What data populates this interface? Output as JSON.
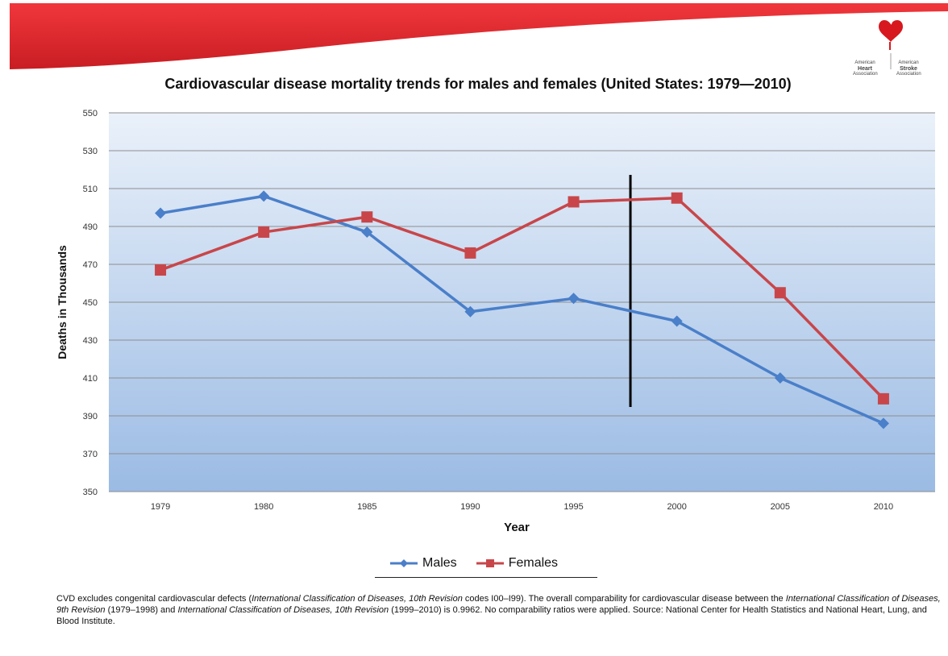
{
  "slide": {
    "logo": {
      "heart_line1": "American",
      "heart_line2": "Heart",
      "heart_line3": "Association",
      "stroke_line1": "American",
      "stroke_line2": "Stroke",
      "stroke_line3": "Association"
    },
    "colors": {
      "banner_red": "#e8252c",
      "plot_top": "#eaf1fa",
      "plot_bottom": "#9bbbe4",
      "males": "#4a7fc9",
      "females": "#c8464a"
    }
  },
  "chart_data": {
    "type": "line",
    "title": "Cardiovascular disease mortality trends for males and females (United States: 1979—2010)",
    "xlabel": "Year",
    "ylabel": "Deaths in Thousands",
    "categories": [
      "1979",
      "1980",
      "1985",
      "1990",
      "1995",
      "2000",
      "2005",
      "2010"
    ],
    "yticks": [
      350,
      370,
      390,
      410,
      430,
      450,
      470,
      490,
      510,
      530,
      550
    ],
    "ylim": [
      350,
      550
    ],
    "grid": true,
    "legend_position": "bottom",
    "series": [
      {
        "name": "Males",
        "marker": "diamond",
        "values": [
          497,
          506,
          487,
          445,
          452,
          440,
          410,
          386
        ]
      },
      {
        "name": "Females",
        "marker": "square",
        "values": [
          467,
          487,
          495,
          476,
          503,
          505,
          455,
          399
        ]
      }
    ],
    "annotation": {
      "type": "vertical-line",
      "between": [
        "1995",
        "2000"
      ]
    }
  },
  "footnote": {
    "part1": "CVD excludes congenital cardiovascular defects (",
    "part2": "International Classification of Diseases, 10th Revision",
    "part3": " codes I00–I99). The overall comparability for cardiovascular disease between the ",
    "part4": "International Classification of Diseases, 9th Revision",
    "part5": " (1979–1998) and ",
    "part6": "International Classification of Diseases, 10th Revision",
    "part7": " (1999–2010) is 0.9962. No comparability ratios were applied. Source: National Center for Health Statistics and National Heart, Lung, and Blood Institute."
  }
}
